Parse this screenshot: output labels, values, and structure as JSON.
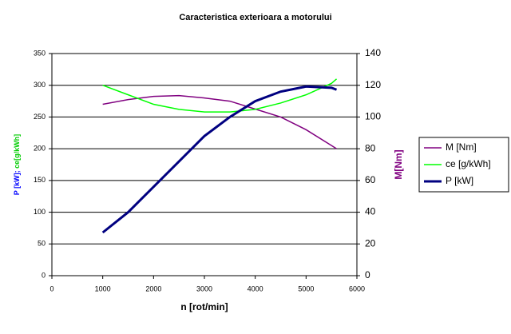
{
  "chart_data": {
    "type": "line",
    "title": "Caracteristica exterioara a motorului",
    "x_label": "n [rot/min]",
    "y_label_parts": [
      "P [kW];",
      "ce[g/kWh]"
    ],
    "y2_label": "M[Nm]",
    "x": [
      1000,
      1500,
      2000,
      2500,
      3000,
      3500,
      4000,
      4500,
      5000,
      5500,
      5600
    ],
    "xlim": [
      0,
      6000
    ],
    "xticks": [
      0,
      1000,
      2000,
      3000,
      4000,
      5000,
      6000
    ],
    "ylim": [
      0,
      350
    ],
    "yticks": [
      0,
      50,
      100,
      150,
      200,
      250,
      300,
      350
    ],
    "y2lim": [
      0,
      140
    ],
    "y2ticks": [
      0,
      20,
      40,
      60,
      80,
      100,
      120,
      140
    ],
    "grid": true,
    "series": [
      {
        "name": "M [Nm]",
        "color": "#800080",
        "axis": "y2",
        "width": 1.5,
        "values": [
          108,
          111,
          113,
          113.5,
          112,
          110,
          105,
          100,
          92,
          82,
          80
        ]
      },
      {
        "name": "ce [g/kWh]",
        "color": "#00ff00",
        "width": 1.5,
        "values": [
          300,
          285,
          270,
          262,
          258,
          258,
          262,
          272,
          285,
          303,
          310
        ]
      },
      {
        "name": "P [kW]",
        "color": "#000080",
        "width": 3,
        "values": [
          68,
          100,
          140,
          180,
          220,
          250,
          275,
          290,
          298,
          296,
          293
        ]
      }
    ]
  }
}
